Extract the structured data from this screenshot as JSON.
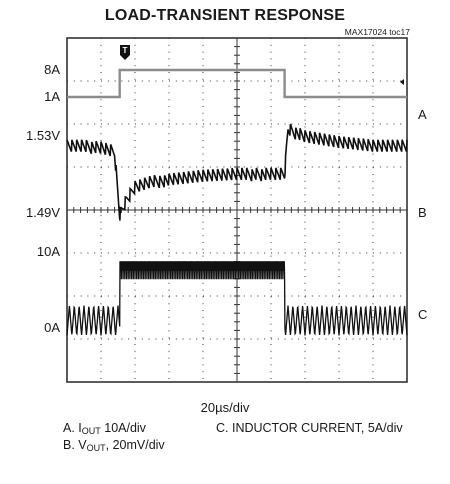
{
  "title": "LOAD-TRANSIENT RESPONSE",
  "figure_id": "MAX17024 toc17",
  "trigger_marker": "T",
  "x_scale": "20µs/div",
  "y_labels": {
    "iout_high": "8A",
    "iout_low": "1A",
    "vout_top": "1.53V",
    "vout_bottom": "1.49V",
    "il_10a": "10A",
    "il_0a": "0A"
  },
  "channel_labels": [
    "A",
    "B",
    "C"
  ],
  "legend": {
    "a_prefix": "A. I",
    "a_sub": "OUT",
    "a_suffix": " 10A/div",
    "b_prefix": "B. V",
    "b_sub": "OUT",
    "b_suffix": ", 20mV/div",
    "c": "C. INDUCTOR CURRENT, 5A/div"
  },
  "colors": {
    "grid": "#333333",
    "trace_a": "#8c8c8c",
    "trace": "#111111"
  },
  "chart_data": {
    "type": "line",
    "title": "LOAD-TRANSIENT RESPONSE",
    "x_divisions": 10,
    "y_divisions": 8,
    "x_scale_per_div": "20µs",
    "series": [
      {
        "name": "A. IOUT 10A/div",
        "x_div": [
          0,
          1.55,
          1.55,
          6.4,
          6.4,
          10
        ],
        "y": [
          1,
          1,
          8,
          8,
          1,
          1
        ],
        "units": "A"
      },
      {
        "name": "B. VOUT, 20mV/div",
        "x_div": [
          0,
          0.5,
          1.0,
          1.4,
          1.55,
          1.75,
          2.0,
          2.5,
          3.0,
          4.0,
          5.0,
          6.0,
          6.4,
          6.5,
          7.0,
          8.0,
          9.0,
          10.0
        ],
        "y": [
          1.525,
          1.525,
          1.524,
          1.522,
          1.488,
          1.496,
          1.503,
          1.506,
          1.507,
          1.509,
          1.51,
          1.51,
          1.51,
          1.534,
          1.53,
          1.527,
          1.525,
          1.525
        ],
        "units": "V"
      },
      {
        "name": "C. INDUCTOR CURRENT, 5A/div",
        "x_div": [
          0,
          1.55,
          1.55,
          6.4,
          6.4,
          10
        ],
        "y": [
          1,
          1,
          8,
          8,
          1,
          1
        ],
        "units": "A",
        "ripple_low_load_pk_pk_A": 4,
        "ripple_high_load_pk_pk_A": 3
      }
    ]
  }
}
